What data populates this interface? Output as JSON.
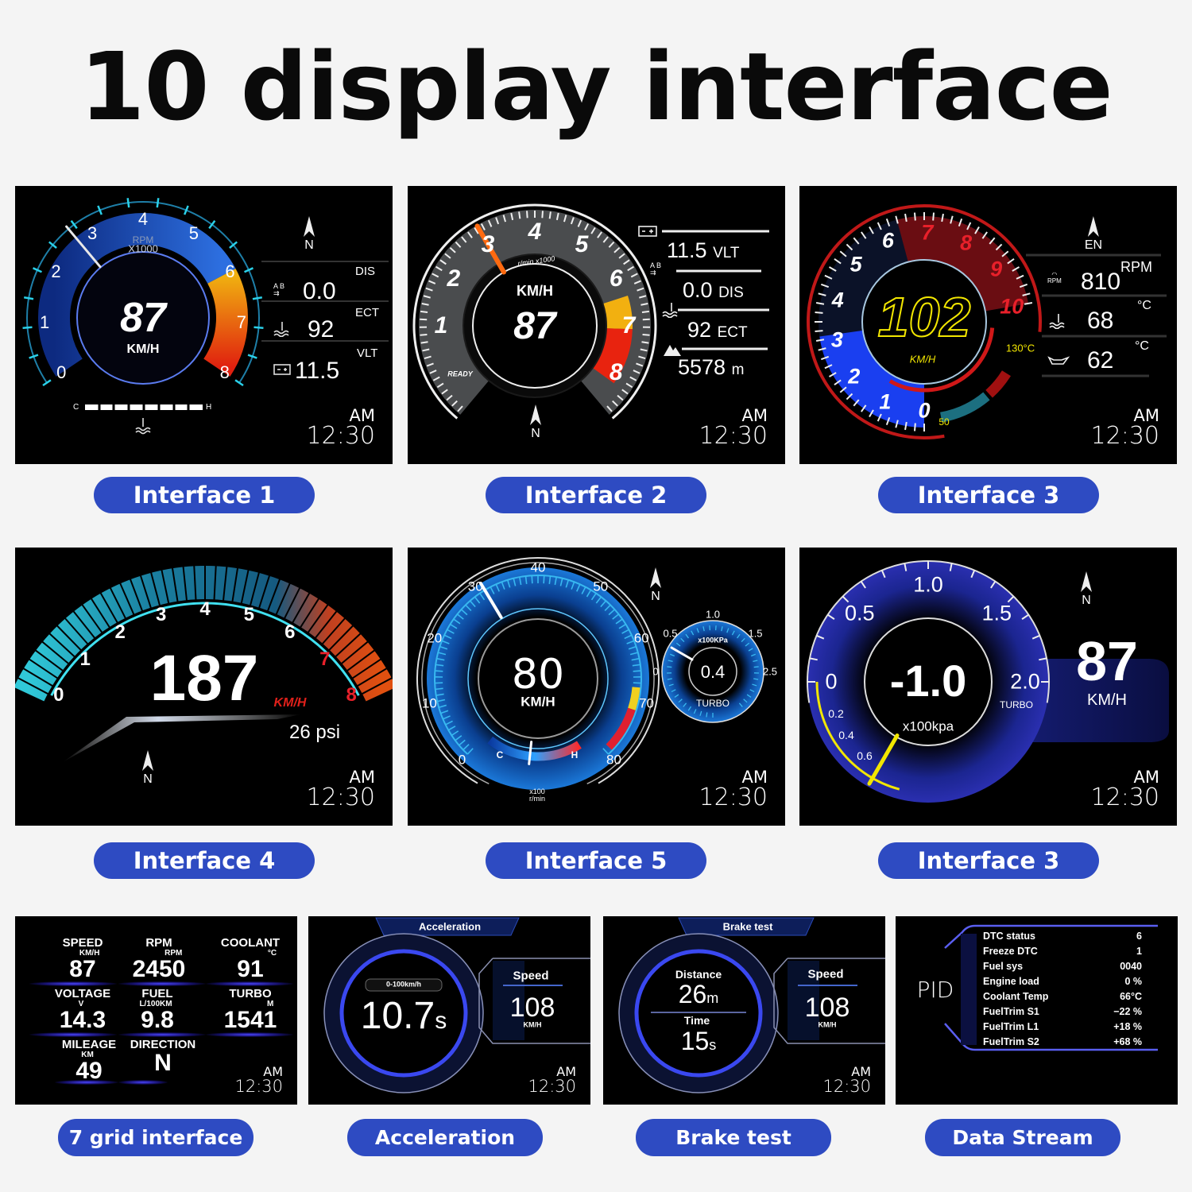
{
  "title": "10 display interface",
  "clock": {
    "ampm": "AM",
    "time": "12:30"
  },
  "colors": {
    "caption_bg": "#2e4bc2",
    "panel_bg": "#000000",
    "page_bg": "#f4f4f4",
    "accent_blue": "#2f6cf0",
    "warning_red": "#e02a1a",
    "speed_yellow": "#f2e600"
  },
  "interface1": {
    "caption": "Interface 1",
    "rpm_label": "RPM",
    "rpm_unit": "X1000",
    "scale": [
      "0",
      "1",
      "2",
      "3",
      "4",
      "5",
      "6",
      "7",
      "8"
    ],
    "speed": "87",
    "speed_unit": "KM/H",
    "compass": "N",
    "rows": [
      {
        "label": "DIS",
        "value": "0.0",
        "icon": "ab-distance-icon"
      },
      {
        "label": "ECT",
        "value": "92",
        "icon": "coolant-temp-icon"
      },
      {
        "label": "VLT",
        "value": "11.5",
        "icon": "battery-icon"
      }
    ],
    "temp_cold": "C",
    "temp_hot": "H"
  },
  "interface2": {
    "caption": "Interface 2",
    "scale": [
      "1",
      "2",
      "3",
      "4",
      "5",
      "6",
      "7",
      "8"
    ],
    "rpm_unit": "r/min x1000",
    "speed_unit": "KM/H",
    "speed": "87",
    "ready": "READY",
    "compass": "N",
    "rows": [
      {
        "value": "11.5",
        "unit": "VLT",
        "icon": "battery-icon"
      },
      {
        "value": "0.0",
        "unit": "DIS",
        "icon": "ab-distance-icon"
      },
      {
        "value": "92",
        "unit": "ECT",
        "icon": "coolant-temp-icon"
      },
      {
        "value": "5578",
        "unit": "m",
        "icon": "altitude-icon"
      }
    ]
  },
  "interface3": {
    "caption": "Interface 3",
    "scale": [
      "0",
      "1",
      "2",
      "3",
      "4",
      "5",
      "6",
      "7",
      "8",
      "9",
      "10"
    ],
    "speed": "102",
    "speed_unit": "KM/H",
    "temp_max": "130°C",
    "temp_min": "50",
    "compass": "EN",
    "rows": [
      {
        "value": "810",
        "unit": "RPM",
        "icon": "rpm-icon",
        "icon_text": "RPM"
      },
      {
        "value": "68",
        "unit": "°C",
        "icon": "coolant-temp-icon"
      },
      {
        "value": "62",
        "unit": "°C",
        "icon": "oil-temp-icon"
      }
    ]
  },
  "interface4": {
    "caption": "Interface 4",
    "scale": [
      "0",
      "1",
      "2",
      "3",
      "4",
      "5",
      "6",
      "7",
      "8"
    ],
    "speed": "187",
    "speed_unit": "KM/H",
    "boost": "26 psi",
    "compass": "N"
  },
  "interface5": {
    "caption": "Interface 5",
    "scale": [
      "0",
      "10",
      "20",
      "30",
      "40",
      "50",
      "60",
      "70",
      "80"
    ],
    "speed": "80",
    "speed_unit": "KM/H",
    "rpm_unit_1": "x100",
    "rpm_unit_2": "r/min",
    "temp_cold": "C",
    "temp_hot": "H",
    "turbo_scale": [
      "0",
      "0.5",
      "1.0",
      "1.5",
      "2.5"
    ],
    "turbo_unit": "x100KPa",
    "turbo_value": "0.4",
    "turbo_label": "TURBO",
    "compass": "N"
  },
  "interface6": {
    "caption": "Interface 3",
    "scale": [
      "0",
      "0.5",
      "1.0",
      "1.5",
      "2.0"
    ],
    "inner_scale": [
      "0.2",
      "0.4",
      "0.6"
    ],
    "value": "-1.0",
    "unit": "x100kpa",
    "label": "TURBO",
    "speed": "87",
    "speed_unit": "KM/H",
    "compass": "N"
  },
  "grid": {
    "caption": "7 grid interface",
    "cells": [
      {
        "label": "SPEED",
        "unit": "KM/H",
        "value": "87"
      },
      {
        "label": "RPM",
        "unit": "RPM",
        "value": "2450"
      },
      {
        "label": "COOLANT",
        "unit": "°C",
        "value": "91"
      },
      {
        "label": "VOLTAGE",
        "unit": "V",
        "value": "14.3"
      },
      {
        "label": "FUEL",
        "unit": "L/100KM",
        "value": "9.8"
      },
      {
        "label": "TURBO",
        "unit": "M",
        "value": "1541"
      },
      {
        "label": "MILEAGE",
        "unit": "KM",
        "value": "49"
      },
      {
        "label": "DIRECTION",
        "unit": "",
        "value": "N"
      }
    ]
  },
  "acceleration": {
    "caption": "Acceleration",
    "header": "Acceleration",
    "range": "0-100km/h",
    "time": "10.7",
    "time_unit": "s",
    "speed_label": "Speed",
    "speed": "108",
    "speed_unit": "KM/H"
  },
  "brake": {
    "caption": "Brake test",
    "header": "Brake test",
    "distance_label": "Distance",
    "distance": "26",
    "distance_unit": "m",
    "time_label": "Time",
    "time": "15",
    "time_unit": "s",
    "speed_label": "Speed",
    "speed": "108",
    "speed_unit": "KM/H"
  },
  "pid": {
    "caption": "Data Stream",
    "heading": "PID",
    "rows": [
      {
        "label": "DTC status",
        "value": "6"
      },
      {
        "label": "Freeze DTC",
        "value": "1"
      },
      {
        "label": "Fuel sys",
        "value": "0040"
      },
      {
        "label": "Engine load",
        "value": "0  %"
      },
      {
        "label": "Coolant Temp",
        "value": "66°C"
      },
      {
        "label": "FuelTrim S1",
        "value": "−22  %"
      },
      {
        "label": "FuelTrim L1",
        "value": "+18  %"
      },
      {
        "label": "FuelTrim S2",
        "value": "+68  %"
      }
    ]
  }
}
